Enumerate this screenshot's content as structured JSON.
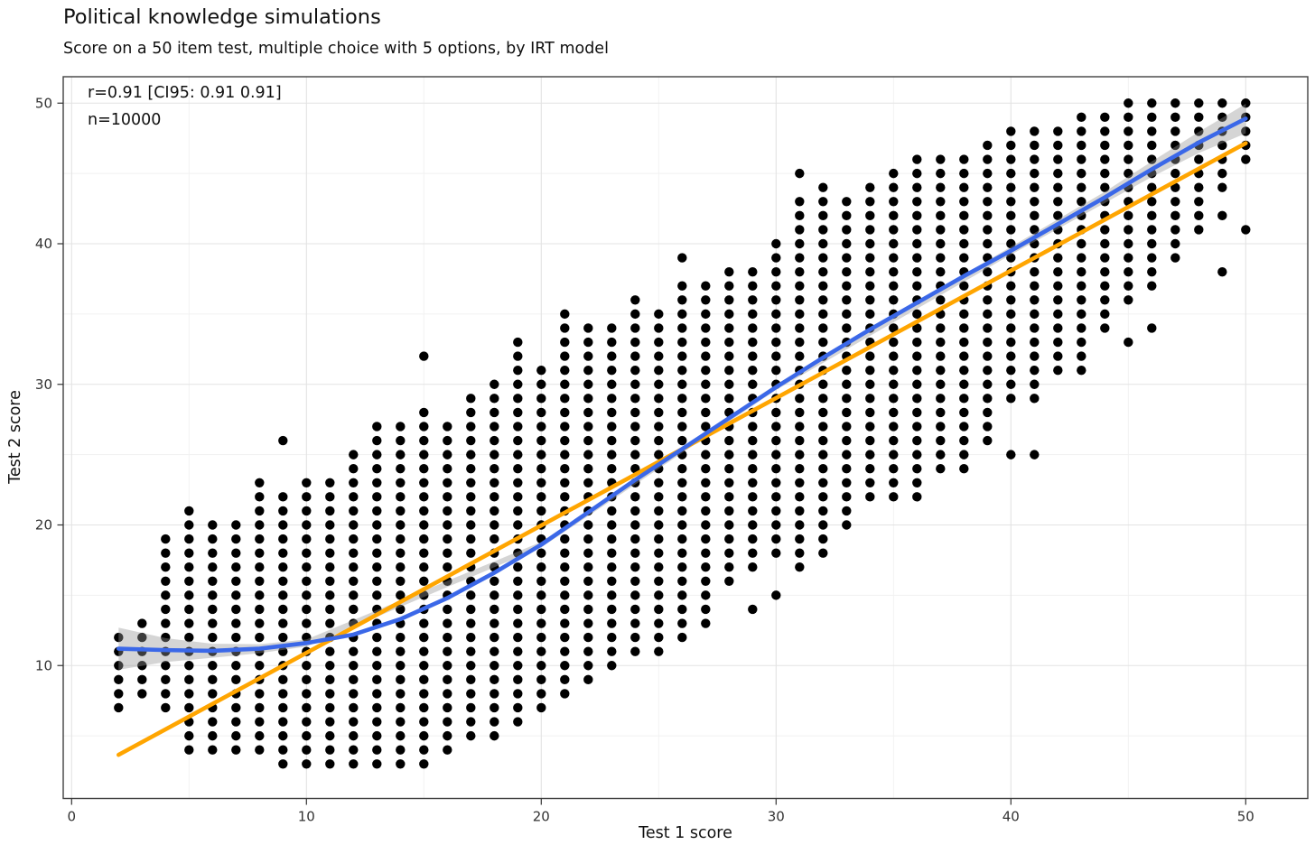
{
  "title": "Political knowledge simulations",
  "subtitle": "Score on a 50 item test, multiple choice with 5 options, by IRT model",
  "colors": {
    "dot": "#000000",
    "loess_line": "#3B68E8",
    "linear_line": "#FFA500",
    "ci_band": "#969696",
    "grid_major": "#e3e3e3",
    "grid_minor": "#f1f1f1",
    "panel_border": "#404040",
    "tick_text": "#333333",
    "text": "#111111"
  },
  "chart_data": {
    "type": "scatter",
    "title": "Political knowledge simulations",
    "subtitle": "Score on a 50 item test, multiple choice with 5 options, by IRT model",
    "xlabel": "Test 1 score",
    "ylabel": "Test 2 score",
    "annotations": [
      "r=0.91 [CI95: 0.91 0.91]",
      "n=10000"
    ],
    "n_points": 10000,
    "r": 0.91,
    "xlim": [
      -0.4,
      52.6
    ],
    "ylim": [
      0.5,
      51.9
    ],
    "x_major_ticks": [
      0,
      10,
      20,
      30,
      40,
      50
    ],
    "y_major_ticks": [
      10,
      20,
      30,
      40,
      50
    ],
    "x_minor_ticks": [
      5,
      15,
      25,
      35,
      45
    ],
    "y_minor_ticks": [
      5,
      15,
      25,
      35,
      45
    ],
    "grid": true,
    "legend": "none",
    "points_are_integer_grid": true,
    "columns_note": "each entry = [test1_score, ymin, ymax, optional extra isolated y values]; dots fill integer ys from ymin..ymax",
    "columns": [
      [
        2,
        8,
        12,
        [
          7
        ]
      ],
      [
        3,
        8,
        13
      ],
      [
        4,
        7,
        19
      ],
      [
        5,
        4,
        21
      ],
      [
        6,
        4,
        20
      ],
      [
        7,
        4,
        20
      ],
      [
        8,
        4,
        23
      ],
      [
        9,
        3,
        22,
        [
          26
        ]
      ],
      [
        10,
        3,
        23
      ],
      [
        11,
        3,
        23
      ],
      [
        12,
        3,
        25
      ],
      [
        13,
        3,
        27
      ],
      [
        14,
        3,
        27
      ],
      [
        15,
        3,
        28,
        [
          32
        ]
      ],
      [
        16,
        4,
        27
      ],
      [
        17,
        5,
        29
      ],
      [
        18,
        5,
        30
      ],
      [
        19,
        6,
        33
      ],
      [
        20,
        7,
        31
      ],
      [
        21,
        8,
        35
      ],
      [
        22,
        9,
        34
      ],
      [
        23,
        10,
        34
      ],
      [
        24,
        11,
        36
      ],
      [
        25,
        11,
        35
      ],
      [
        26,
        12,
        37,
        [
          39
        ]
      ],
      [
        27,
        13,
        37
      ],
      [
        28,
        16,
        38
      ],
      [
        29,
        17,
        38,
        [
          14
        ]
      ],
      [
        30,
        18,
        40,
        [
          15
        ]
      ],
      [
        31,
        17,
        43,
        [
          45
        ]
      ],
      [
        32,
        18,
        44
      ],
      [
        33,
        20,
        43
      ],
      [
        34,
        22,
        44
      ],
      [
        35,
        22,
        45
      ],
      [
        36,
        22,
        46
      ],
      [
        37,
        24,
        46
      ],
      [
        38,
        24,
        46
      ],
      [
        39,
        26,
        47
      ],
      [
        40,
        29,
        48,
        [
          25
        ]
      ],
      [
        41,
        29,
        48,
        [
          25
        ]
      ],
      [
        42,
        31,
        48
      ],
      [
        43,
        31,
        49
      ],
      [
        44,
        34,
        49
      ],
      [
        45,
        36,
        50,
        [
          33
        ]
      ],
      [
        46,
        37,
        50,
        [
          34
        ]
      ],
      [
        47,
        39,
        50
      ],
      [
        48,
        41,
        50
      ],
      [
        49,
        44,
        50,
        [
          42,
          38
        ]
      ],
      [
        50,
        46,
        50,
        [
          41
        ]
      ]
    ],
    "loess": {
      "x": [
        2,
        4,
        6,
        8,
        10,
        12,
        14,
        16,
        18,
        20,
        22,
        24,
        26,
        28,
        30,
        32,
        34,
        36,
        38,
        40,
        42,
        44,
        46,
        48,
        50
      ],
      "y": [
        11.2,
        11.1,
        11.05,
        11.2,
        11.6,
        12.2,
        13.3,
        14.8,
        16.6,
        18.6,
        20.9,
        23.2,
        25.4,
        27.6,
        29.8,
        31.9,
        33.9,
        35.8,
        37.7,
        39.5,
        41.4,
        43.3,
        45.3,
        47.2,
        48.9
      ]
    },
    "ci_band": {
      "x": [
        2,
        4,
        6,
        8,
        10,
        20,
        30,
        40,
        44,
        46,
        48,
        50
      ],
      "center_y": [
        11.2,
        11.1,
        11.05,
        11.2,
        11.6,
        18.6,
        29.8,
        39.5,
        43.3,
        45.3,
        47.2,
        48.9
      ],
      "half_width": [
        1.5,
        0.85,
        0.5,
        0.32,
        0.25,
        0.2,
        0.2,
        0.28,
        0.4,
        0.55,
        0.75,
        1.05
      ]
    },
    "linear_fit": {
      "x1": 2,
      "y1": 3.65,
      "x2": 50,
      "y2": 47.15
    }
  }
}
